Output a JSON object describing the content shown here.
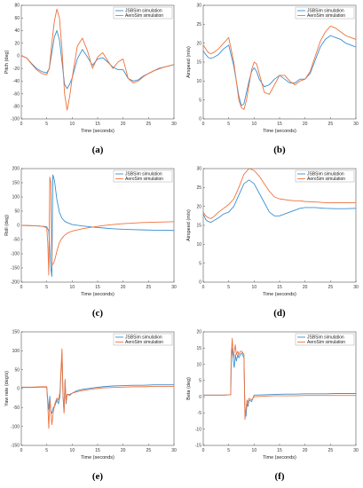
{
  "colors": {
    "jsbsim": "#3a8fd1",
    "aerosim": "#f0723a",
    "axis": "#555555"
  },
  "chart_data": [
    {
      "type": "line",
      "panel_label": "(a)",
      "xlabel": "Time (seconds)",
      "ylabel": "Pitch (deg)",
      "xlim": [
        0,
        30
      ],
      "ylim": [
        -100,
        80
      ],
      "xticks": [
        0,
        5,
        10,
        15,
        20,
        25,
        30
      ],
      "yticks": [
        -100,
        -80,
        -60,
        -40,
        -20,
        0,
        20,
        40,
        60,
        80
      ],
      "legend": "top-right",
      "grid": false,
      "series": [
        {
          "name": "JSBSim simulation",
          "x": [
            0,
            1,
            2,
            3,
            4,
            5,
            5.5,
            6,
            6.5,
            7,
            7.5,
            8,
            8.5,
            9,
            9.5,
            10,
            11,
            12,
            13,
            14,
            15,
            16,
            17,
            18,
            19,
            20,
            21,
            22,
            23,
            24,
            25,
            26,
            27,
            28,
            29,
            30
          ],
          "y": [
            0,
            -3,
            -12,
            -20,
            -25,
            -27,
            -20,
            5,
            30,
            40,
            25,
            -10,
            -45,
            -52,
            -45,
            -35,
            -5,
            10,
            -2,
            -15,
            -5,
            -3,
            -10,
            -18,
            -22,
            -22,
            -36,
            -40,
            -38,
            -32,
            -28,
            -24,
            -20,
            -18,
            -16,
            -14
          ]
        },
        {
          "name": "AeroSim simulation",
          "x": [
            0,
            1,
            2,
            3,
            4,
            5,
            5.5,
            6,
            6.5,
            7,
            7.5,
            8,
            8.5,
            9,
            9.5,
            10,
            11,
            12,
            13,
            14,
            15,
            16,
            17,
            18,
            19,
            20,
            21,
            22,
            23,
            24,
            25,
            26,
            27,
            28,
            29,
            30
          ],
          "y": [
            0,
            -3,
            -13,
            -22,
            -28,
            -30,
            -20,
            20,
            55,
            74,
            60,
            10,
            -60,
            -86,
            -65,
            -35,
            15,
            28,
            8,
            -20,
            -2,
            5,
            -8,
            -20,
            -10,
            -5,
            -36,
            -43,
            -40,
            -33,
            -28,
            -24,
            -21,
            -18,
            -16,
            -14
          ]
        }
      ]
    },
    {
      "type": "line",
      "panel_label": "(b)",
      "xlabel": "Time (seconds)",
      "ylabel": "Airspeed (m/s)",
      "xlim": [
        0,
        30
      ],
      "ylim": [
        0,
        30
      ],
      "xticks": [
        0,
        5,
        10,
        15,
        20,
        25,
        30
      ],
      "yticks": [
        0,
        5,
        10,
        15,
        20,
        25,
        30
      ],
      "legend": "top-right",
      "grid": false,
      "series": [
        {
          "name": "JSBSim simulation",
          "x": [
            0,
            0.5,
            1,
            1.5,
            2,
            3,
            4,
            5,
            6,
            7,
            7.5,
            8,
            8.5,
            9,
            9.5,
            10,
            10.5,
            11,
            12,
            13,
            14,
            15,
            16,
            17,
            18,
            19,
            20,
            21,
            22,
            23,
            24,
            25,
            26,
            27,
            28,
            29,
            30
          ],
          "y": [
            18,
            17,
            16.2,
            16,
            16.2,
            17,
            18.5,
            19.5,
            14,
            6,
            3.5,
            4,
            7,
            10,
            12.5,
            13.5,
            12.5,
            10.5,
            8.5,
            9,
            10.5,
            11.5,
            10.5,
            9.5,
            9.5,
            10.5,
            10.5,
            12,
            15.5,
            19,
            21,
            22,
            21.5,
            21,
            20,
            19.5,
            19
          ]
        },
        {
          "name": "AeroSim simulation",
          "x": [
            0,
            0.5,
            1,
            1.5,
            2,
            3,
            4,
            5,
            6,
            7,
            7.5,
            8,
            8.5,
            9,
            9.5,
            10,
            10.5,
            11,
            12,
            13,
            14,
            15,
            16,
            17,
            18,
            19,
            20,
            21,
            22,
            23,
            24,
            25,
            26,
            27,
            28,
            29,
            30
          ],
          "y": [
            19.5,
            18.5,
            17.5,
            17.2,
            17.5,
            18.5,
            20,
            21.5,
            15,
            5,
            3,
            2.5,
            5,
            9,
            13,
            15,
            14.5,
            12,
            7,
            6.5,
            9,
            11.5,
            11.5,
            10,
            9,
            10,
            10.5,
            12.5,
            16.5,
            20.5,
            23,
            24.5,
            24,
            23,
            22,
            21.5,
            21
          ]
        }
      ]
    },
    {
      "type": "line",
      "panel_label": "(c)",
      "xlabel": "Time (seconds)",
      "ylabel": "Roll (deg)",
      "xlim": [
        0,
        30
      ],
      "ylim": [
        -200,
        200
      ],
      "xticks": [
        0,
        5,
        10,
        15,
        20,
        25,
        30
      ],
      "yticks": [
        -200,
        -150,
        -100,
        -50,
        0,
        50,
        100,
        150,
        200
      ],
      "legend": "top-right",
      "grid": false,
      "series": [
        {
          "name": "JSBSim simulation",
          "x": [
            0,
            2,
            4,
            5,
            5.4,
            5.8,
            6,
            6.2,
            6.5,
            7,
            7.5,
            8,
            8.5,
            9,
            10,
            12,
            14,
            16,
            18,
            20,
            22,
            24,
            26,
            28,
            30
          ],
          "y": [
            0,
            -1,
            -3,
            -5,
            -20,
            -150,
            -180,
            178,
            160,
            90,
            45,
            25,
            15,
            10,
            3,
            -2,
            -6,
            -9,
            -12,
            -14,
            -15,
            -16,
            -17,
            -17,
            -18
          ]
        },
        {
          "name": "AeroSim simulation",
          "x": [
            0,
            2,
            4,
            5,
            5.2,
            5.4,
            5.6,
            5.8,
            6,
            6.3,
            6.6,
            7,
            7.5,
            8,
            8.5,
            9,
            10,
            12,
            14,
            16,
            18,
            20,
            22,
            24,
            26,
            28,
            30
          ],
          "y": [
            0,
            -1,
            -3,
            -8,
            -60,
            -175,
            170,
            150,
            -140,
            -135,
            -120,
            -90,
            -60,
            -45,
            -35,
            -28,
            -20,
            -12,
            -6,
            -1,
            3,
            6,
            8,
            10,
            11,
            12,
            13
          ]
        }
      ]
    },
    {
      "type": "line",
      "panel_label": "(d)",
      "xlabel": "Time (seconds)",
      "ylabel": "Airspeed (m/s)",
      "xlim": [
        0,
        30
      ],
      "ylim": [
        0,
        30
      ],
      "xticks": [
        0,
        5,
        10,
        15,
        20,
        25,
        30
      ],
      "yticks": [
        0,
        5,
        10,
        15,
        20,
        25,
        30
      ],
      "legend": "top-right",
      "grid": false,
      "series": [
        {
          "name": "JSBSim simulation",
          "x": [
            0,
            0.5,
            1,
            1.5,
            2,
            3,
            4,
            5,
            6,
            7,
            8,
            9,
            10,
            11,
            12,
            13,
            14,
            15,
            16,
            17,
            18,
            19,
            20,
            22,
            24,
            26,
            28,
            30
          ],
          "y": [
            18,
            16.5,
            16,
            15.8,
            16.2,
            17,
            18,
            18.5,
            20,
            23,
            26,
            27,
            26,
            23.5,
            21,
            18.5,
            17.5,
            17.5,
            18,
            18.5,
            19,
            19.5,
            19.7,
            19.7,
            19.5,
            19.4,
            19.4,
            19.5
          ]
        },
        {
          "name": "AeroSim simulation",
          "x": [
            0,
            0.5,
            1,
            1.5,
            2,
            3,
            4,
            5,
            6,
            7,
            8,
            9,
            10,
            11,
            12,
            13,
            14,
            15,
            16,
            17,
            18,
            19,
            20,
            22,
            24,
            26,
            28,
            30
          ],
          "y": [
            18.5,
            17.5,
            17,
            16.8,
            17.2,
            18.5,
            19.5,
            20.5,
            22,
            25,
            28.5,
            30,
            29.5,
            28,
            26,
            24,
            22.5,
            22,
            21.8,
            21.6,
            21.5,
            21.5,
            21.3,
            21.2,
            21,
            21,
            21,
            21
          ]
        }
      ]
    },
    {
      "type": "line",
      "panel_label": "(e)",
      "xlabel": "Time (seconds)",
      "ylabel": "Yaw rate (deg/s)",
      "xlim": [
        0,
        30
      ],
      "ylim": [
        -150,
        150
      ],
      "xticks": [
        0,
        5,
        10,
        15,
        20,
        25,
        30
      ],
      "yticks": [
        -150,
        -100,
        -50,
        0,
        50,
        100,
        150
      ],
      "legend": "top-right",
      "grid": false,
      "series": [
        {
          "name": "JSBSim simulation",
          "x": [
            0,
            2,
            4,
            5,
            5.2,
            5.4,
            5.6,
            5.8,
            6,
            6.3,
            6.6,
            7,
            7.3,
            7.6,
            7.8,
            8,
            8.2,
            8.4,
            8.6,
            8.8,
            9,
            9.5,
            10,
            11,
            12,
            14,
            16,
            18,
            20,
            22,
            24,
            26,
            28,
            30
          ],
          "y": [
            3,
            3,
            4,
            4,
            -30,
            -55,
            -20,
            -60,
            -65,
            -50,
            -45,
            -30,
            -40,
            -20,
            40,
            90,
            -20,
            -60,
            20,
            -40,
            -15,
            -18,
            -12,
            -5,
            -2,
            2,
            5,
            7,
            8,
            9,
            9,
            10,
            10,
            10
          ]
        },
        {
          "name": "AeroSim simulation",
          "x": [
            0,
            2,
            4,
            5,
            5.2,
            5.4,
            5.6,
            5.8,
            6,
            6.3,
            6.6,
            7,
            7.3,
            7.6,
            7.8,
            8,
            8.2,
            8.4,
            8.6,
            8.8,
            9,
            9.5,
            10,
            11,
            12,
            14,
            16,
            18,
            20,
            22,
            24,
            26,
            28,
            30
          ],
          "y": [
            4,
            4,
            5,
            5,
            -40,
            -105,
            -30,
            -60,
            -95,
            -60,
            -40,
            -25,
            -30,
            -10,
            50,
            105,
            -20,
            -65,
            25,
            -35,
            -15,
            -15,
            -12,
            -8,
            -5,
            -1,
            2,
            3,
            4,
            5,
            5,
            6,
            6,
            6
          ]
        }
      ]
    },
    {
      "type": "line",
      "panel_label": "(f)",
      "xlabel": "Time (seconds)",
      "ylabel": "Beta (deg)",
      "xlim": [
        0,
        30
      ],
      "ylim": [
        -15,
        20
      ],
      "xticks": [
        0,
        5,
        10,
        15,
        20,
        25,
        30
      ],
      "yticks": [
        -15,
        -10,
        -5,
        0,
        5,
        10,
        15,
        20
      ],
      "legend": "top-right",
      "grid": false,
      "series": [
        {
          "name": "JSBSim simulation",
          "x": [
            0,
            2,
            4,
            5.4,
            5.5,
            5.7,
            5.9,
            6.1,
            6.3,
            6.5,
            6.8,
            7,
            7.3,
            7.6,
            8,
            8.2,
            8.4,
            8.6,
            8.8,
            9,
            9.5,
            10,
            12,
            14,
            16,
            18,
            20,
            22,
            24,
            26,
            28,
            30
          ],
          "y": [
            0.5,
            0.5,
            0.5,
            0.6,
            12,
            15,
            11,
            9,
            13,
            11,
            13,
            12,
            13,
            13.5,
            12,
            -5,
            -6,
            -2,
            -3,
            -1,
            -1.5,
            0.5,
            0.6,
            0.7,
            0.8,
            0.8,
            0.9,
            0.9,
            0.9,
            1,
            1,
            1
          ]
        },
        {
          "name": "AeroSim simulation",
          "x": [
            0,
            2,
            4,
            5.4,
            5.5,
            5.7,
            5.9,
            6.1,
            6.3,
            6.5,
            6.8,
            7,
            7.3,
            7.6,
            8,
            8.2,
            8.4,
            8.6,
            8.8,
            9,
            9.5,
            10,
            12,
            14,
            16,
            18,
            20,
            22,
            24,
            26,
            28,
            30
          ],
          "y": [
            0.5,
            0.5,
            0.5,
            0.6,
            13,
            18,
            12,
            14,
            16,
            13,
            14,
            13,
            14,
            14,
            13,
            -7,
            -4,
            -1,
            -2,
            -0.5,
            -1,
            0,
            0.2,
            0.3,
            0.3,
            0.3,
            0.4,
            0.4,
            0.4,
            0.4,
            0.4,
            0.4
          ]
        }
      ]
    }
  ]
}
